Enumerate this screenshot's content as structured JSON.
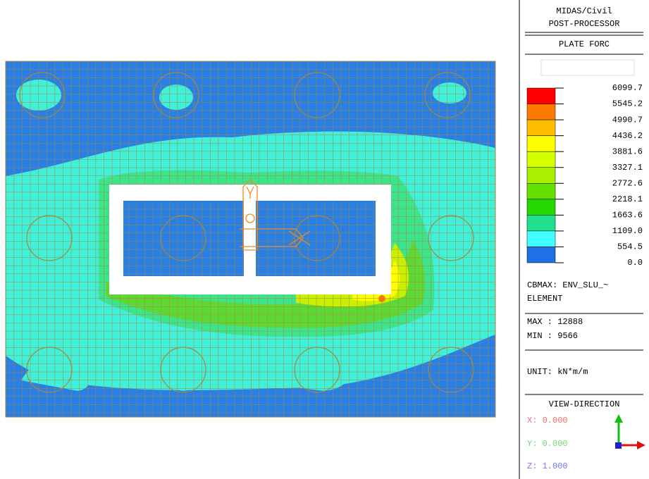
{
  "header": {
    "line1": "MIDAS/Civil",
    "line2": "POST-PROCESSOR"
  },
  "result_type": "PLATE FORC",
  "legend": {
    "labels": [
      "6099.7",
      "5545.2",
      "4990.7",
      "4436.2",
      "3881.6",
      "3327.1",
      "2772.6",
      "2218.1",
      "1663.6",
      "1109.0",
      "554.5",
      "0.0"
    ],
    "colors": [
      "#ff0000",
      "#ff7a00",
      "#ffbf00",
      "#ffff00",
      "#d4ff00",
      "#a8f000",
      "#66e000",
      "#22d800",
      "#20e090",
      "#40ffff",
      "#1e70e6"
    ]
  },
  "cbmax": {
    "line1": "CBMAX: ENV_SLU_~",
    "line2": "ELEMENT"
  },
  "max": "MAX : 12888",
  "min": "MIN : 9566",
  "unit": "UNIT: kN*m/m",
  "view": {
    "title": "VIEW-DIRECTION",
    "x": "X: 0.000",
    "y": "Y: 0.000",
    "z": "Z: 1.000"
  }
}
